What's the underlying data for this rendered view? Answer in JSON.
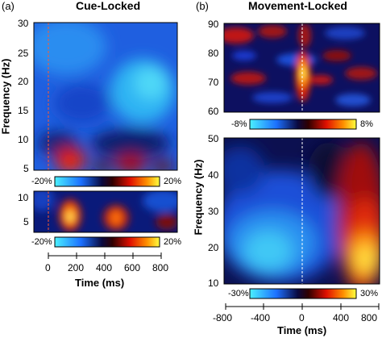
{
  "figure": {
    "panel_a": {
      "letter": "(a)",
      "title": "Cue-Locked",
      "ylabel": "Frequency (Hz)",
      "xlabel": "Time (ms)",
      "upper_yticks": [
        "30",
        "25",
        "20",
        "15",
        "10",
        "5"
      ],
      "lower_yticks": [
        "10",
        "5"
      ],
      "xticks": [
        "0",
        "200",
        "400",
        "600",
        "800"
      ],
      "colorbar_upper": {
        "min": "-20%",
        "max": "20%"
      },
      "colorbar_lower": {
        "min": "-20%",
        "max": "20%"
      }
    },
    "panel_b": {
      "letter": "(b)",
      "title": "Movement-Locked",
      "ylabel": "Frequency (Hz)",
      "xlabel": "Time (ms)",
      "upper_yticks": [
        "90",
        "80",
        "70",
        "60"
      ],
      "lower_yticks": [
        "50",
        "40",
        "30",
        "20",
        "10"
      ],
      "xticks": [
        "-800",
        "-400",
        "0",
        "400",
        "800"
      ],
      "colorbar_upper": {
        "min": "-8%",
        "max": "8%"
      },
      "colorbar_lower": {
        "min": "-30%",
        "max": "30%"
      }
    }
  }
}
